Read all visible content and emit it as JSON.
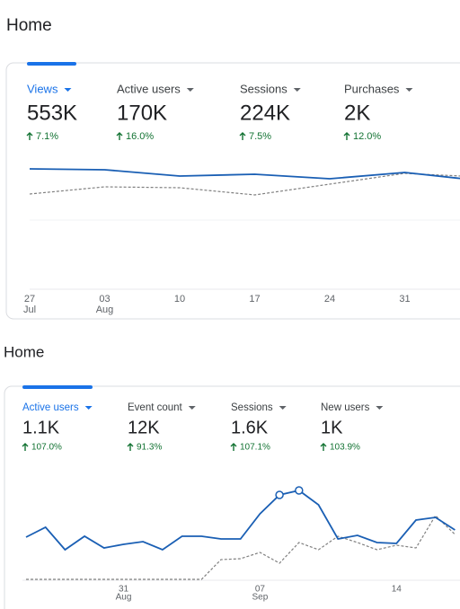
{
  "panels": [
    {
      "title": "Home",
      "metrics": [
        {
          "name": "Views",
          "value": "553K",
          "change": "7.1%"
        },
        {
          "name": "Active users",
          "value": "170K",
          "change": "16.0%"
        },
        {
          "name": "Sessions",
          "value": "224K",
          "change": "7.5%"
        },
        {
          "name": "Purchases",
          "value": "2K",
          "change": "12.0%"
        }
      ],
      "chart_data": {
        "type": "line",
        "categories": [
          "27",
          "03",
          "10",
          "17",
          "24",
          "31",
          null
        ],
        "months": [
          "Jul",
          "Aug",
          null,
          null,
          null,
          null,
          null
        ],
        "series": [
          {
            "color": "#1a5fb4",
            "style": "solid",
            "values": [
              134,
              133,
              126,
              128,
              123,
              130,
              121
            ]
          },
          {
            "color": "#808080",
            "style": "dashed",
            "values": [
              106,
              114,
              113,
              105,
              117,
              129,
              125
            ]
          }
        ],
        "ylim": [
          0,
          150
        ]
      }
    },
    {
      "title": "Home",
      "metrics": [
        {
          "name": "Active users",
          "value": "1.1K",
          "change": "107.0%"
        },
        {
          "name": "Event count",
          "value": "12K",
          "change": "91.3%"
        },
        {
          "name": "Sessions",
          "value": "1.6K",
          "change": "107.1%"
        },
        {
          "name": "New users",
          "value": "1K",
          "change": "103.9%"
        }
      ],
      "chart_data": {
        "type": "line",
        "categories": [
          null,
          null,
          null,
          null,
          null,
          "31",
          null,
          null,
          null,
          null,
          null,
          null,
          "07",
          null,
          null,
          null,
          null,
          null,
          null,
          "14",
          null,
          null,
          null
        ],
        "months": [
          null,
          null,
          null,
          null,
          null,
          "Aug",
          null,
          null,
          null,
          null,
          null,
          null,
          "Sep",
          null,
          null,
          null,
          null,
          null,
          null,
          null,
          null,
          null,
          null
        ],
        "series": [
          {
            "color": "#1a5fb4",
            "style": "solid",
            "values": [
              48,
              59,
              34,
              49,
              36,
              40,
              43,
              34,
              49,
              49,
              46,
              46,
              74,
              95,
              100,
              84,
              46,
              50,
              42,
              41,
              67,
              70,
              56
            ]
          },
          {
            "color": "#808080",
            "style": "dashed",
            "values": [
              1,
              1,
              1,
              1,
              1,
              1,
              1,
              1,
              1,
              1,
              23,
              24,
              31,
              19,
              42,
              34,
              49,
              42,
              34,
              39,
              36,
              72,
              51
            ]
          }
        ],
        "ylim": [
          0,
          110
        ]
      }
    }
  ]
}
